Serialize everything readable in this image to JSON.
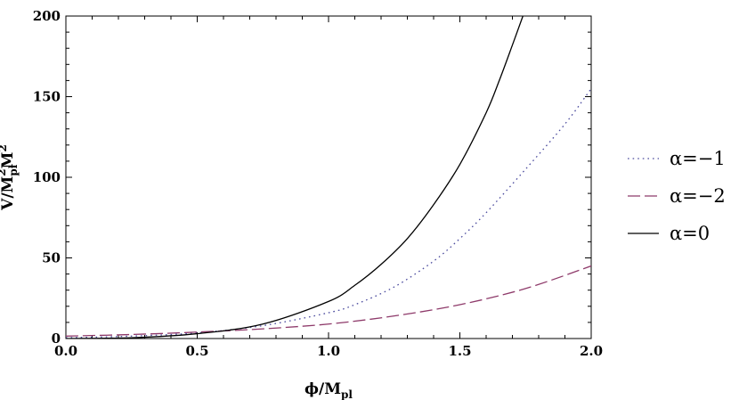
{
  "chart_data": {
    "type": "line",
    "xlabel": {
      "pre": "ϕ/M",
      "sub": "pl"
    },
    "ylabel": {
      "pre": "V/M",
      "sub": "pl",
      "sup1": "2",
      "mid": "M",
      "sup2": "2"
    },
    "xlim": [
      0,
      2.0
    ],
    "ylim": [
      0,
      200
    ],
    "xticks": [
      0.0,
      0.5,
      1.0,
      1.5,
      2.0
    ],
    "xtick_labels": [
      "0.0",
      "0.5",
      "1.0",
      "1.5",
      "2.0"
    ],
    "yticks": [
      0,
      50,
      100,
      150,
      200
    ],
    "ytick_labels": [
      "0",
      "50",
      "100",
      "150",
      "200"
    ],
    "grid": false,
    "legend_position": "right",
    "series": [
      {
        "name": "α=−1",
        "style": "dotted",
        "color": "#4b4b9e",
        "x": [
          0,
          0.25,
          0.5,
          0.75,
          1.0,
          1.1,
          1.25,
          1.4,
          1.5,
          1.6,
          1.75,
          1.9,
          2.0
        ],
        "y": [
          0.5,
          1.5,
          3.5,
          8,
          16,
          21,
          32,
          48,
          62,
          78,
          105,
          133,
          155
        ]
      },
      {
        "name": "α=−2",
        "style": "dashed",
        "color": "#8e3a6a",
        "x": [
          0,
          0.25,
          0.5,
          0.75,
          1.0,
          1.25,
          1.5,
          1.75,
          2.0
        ],
        "y": [
          1.5,
          2.5,
          4,
          6,
          9,
          14,
          21,
          31,
          45
        ]
      },
      {
        "name": "α=0",
        "style": "solid",
        "color": "#000000",
        "x": [
          0,
          0.25,
          0.5,
          0.75,
          1.0,
          1.1,
          1.2,
          1.3,
          1.4,
          1.5,
          1.6,
          1.65,
          1.7,
          1.74
        ],
        "y": [
          0,
          0.5,
          3,
          9,
          23,
          33,
          46,
          62,
          83,
          108,
          140,
          160,
          182,
          200
        ]
      }
    ]
  }
}
